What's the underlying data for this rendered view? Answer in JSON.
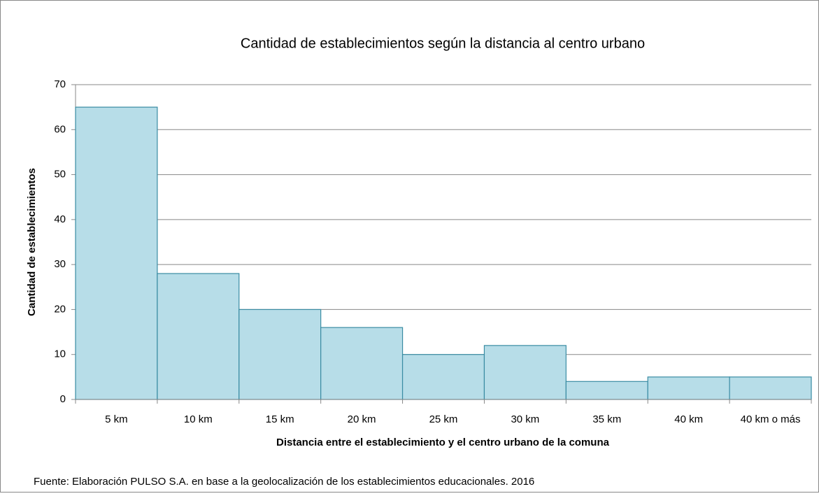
{
  "chart_data": {
    "type": "bar",
    "title": "Cantidad de establecimientos según la distancia al centro urbano",
    "x_label": "Distancia entre el establecimiento y el centro urbano de la comuna",
    "y_label": "Cantidad de establecimientos",
    "source": "Fuente: Elaboración PULSO S.A. en base a la geolocalización de los establecimientos educacionales. 2016",
    "categories": [
      "5 km",
      "10 km",
      "15 km",
      "20 km",
      "25 km",
      "30 km",
      "35 km",
      "40 km",
      "40 km o más"
    ],
    "values": [
      65,
      28,
      20,
      16,
      10,
      12,
      4,
      5,
      5
    ],
    "color": "#b7dde8",
    "ylim": [
      0,
      70
    ],
    "yticks": [
      0,
      10,
      20,
      30,
      40,
      50,
      60,
      70
    ],
    "grid": true
  }
}
